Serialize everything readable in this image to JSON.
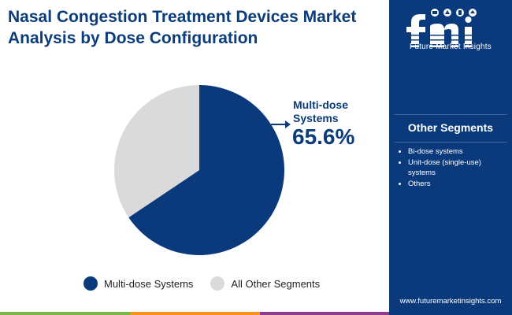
{
  "title": {
    "line1": "Nasal Congestion Treatment Devices Market",
    "line2": "Analysis by Dose Configuration"
  },
  "chart_data": {
    "type": "pie",
    "title": "Nasal Congestion Treatment Devices Market Analysis by Dose Configuration",
    "series": [
      {
        "name": "Multi-dose Systems",
        "value": 65.6,
        "color": "#0a3a7c"
      },
      {
        "name": "All Other Segments",
        "value": 34.4,
        "color": "#dadada"
      }
    ],
    "annotation": {
      "label": "Multi-dose Systems",
      "value_text": "65.6%"
    },
    "legend_position": "bottom"
  },
  "annotation": {
    "label": "Multi-dose Systems",
    "value": "65.6%"
  },
  "legend": {
    "items": [
      {
        "label": "Multi-dose Systems",
        "color": "#0a3a7c"
      },
      {
        "label": "All Other Segments",
        "color": "#dadada"
      }
    ]
  },
  "sidebar": {
    "brand_text": "Future Market Insights",
    "heading": "Other Segments",
    "items": [
      "Bi-dose systems",
      "Unit-dose (single-use) systems",
      "Others"
    ],
    "website": "www.futuremarketinsights.com"
  },
  "colors": {
    "brand_navy": "#0a3a7c",
    "title_navy": "#0b3d7a",
    "segment_grey": "#dadada",
    "bar_colors": [
      "#7ab648",
      "#f7941d",
      "#8e3a8e",
      "#0a3a7c"
    ]
  }
}
